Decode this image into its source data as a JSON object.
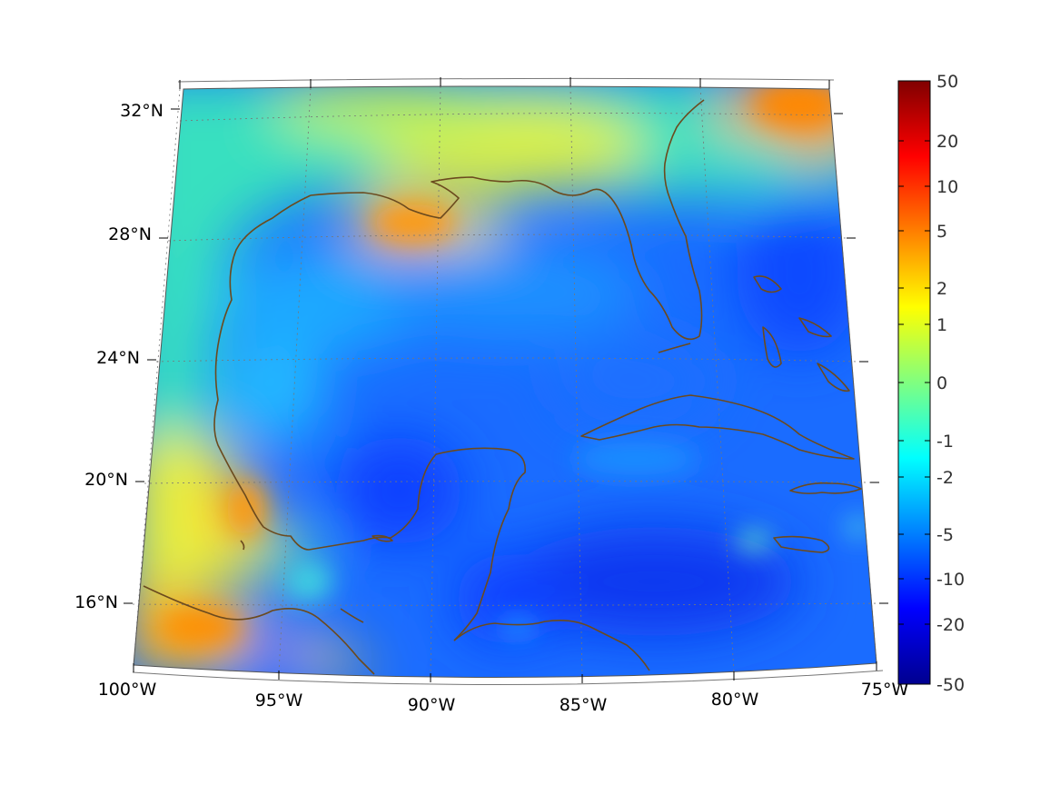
{
  "map": {
    "projection": "conic",
    "region": "Gulf of Mexico",
    "lon_range": [
      -100,
      -75
    ],
    "lat_range": [
      14,
      33
    ],
    "grid": true,
    "coastline_color": "#6b4a1e",
    "lat_labels": [
      {
        "value": 32,
        "text": "32°N"
      },
      {
        "value": 28,
        "text": "28°N"
      },
      {
        "value": 24,
        "text": "24°N"
      },
      {
        "value": 20,
        "text": "20°N"
      },
      {
        "value": 16,
        "text": "16°N"
      }
    ],
    "lon_labels": [
      {
        "value": -100,
        "text": "100°W"
      },
      {
        "value": -95,
        "text": "95°W"
      },
      {
        "value": -90,
        "text": "90°W"
      },
      {
        "value": -85,
        "text": "85°W"
      },
      {
        "value": -80,
        "text": "80°W"
      },
      {
        "value": -75,
        "text": "75°W"
      }
    ]
  },
  "colorbar": {
    "colormap": "jet",
    "scale": "symmetric-log",
    "ticks": [
      "50",
      "20",
      "10",
      "5",
      "2",
      "1",
      "0",
      "-1",
      "-2",
      "-5",
      "-10",
      "-20",
      "-50"
    ]
  }
}
